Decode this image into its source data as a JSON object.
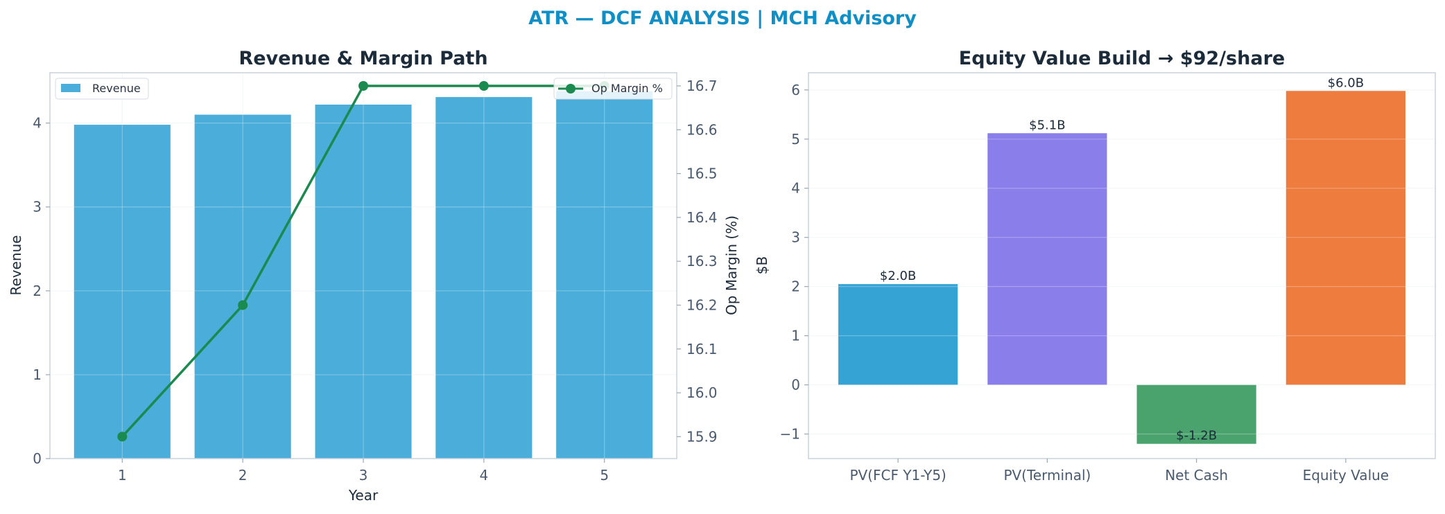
{
  "suptitle": "ATR — DCF ANALYSIS | MCH Advisory",
  "chart_data": [
    {
      "type": "bar",
      "title": "Revenue & Margin Path",
      "xlabel": "Year",
      "ylabel": "Revenue",
      "y2label": "Op Margin (%)",
      "categories": [
        "1",
        "2",
        "3",
        "4",
        "5"
      ],
      "ylim": [
        0,
        4.6
      ],
      "y2lim": [
        15.85,
        16.73
      ],
      "yticks": [
        "0",
        "1",
        "2",
        "3",
        "4"
      ],
      "y2ticks": [
        "15.9",
        "16.0",
        "16.1",
        "16.2",
        "16.3",
        "16.4",
        "16.5",
        "16.6",
        "16.7"
      ],
      "series": [
        {
          "name": "Revenue",
          "kind": "bar",
          "axis": "left",
          "values": [
            3.98,
            4.1,
            4.22,
            4.31,
            4.38
          ],
          "color": "#4badd9"
        },
        {
          "name": "Op Margin %",
          "kind": "line",
          "axis": "right",
          "values": [
            15.9,
            16.2,
            16.7,
            16.7,
            16.7
          ],
          "color": "#1a8a4e"
        }
      ],
      "legend": [
        "upper-left",
        "upper-right"
      ],
      "grid": true
    },
    {
      "type": "bar",
      "title": "Equity Value Build → $92/share",
      "xlabel": "",
      "ylabel": "$B",
      "categories": [
        "PV(FCF Y1-Y5)",
        "PV(Terminal)",
        "Net Cash",
        "Equity Value"
      ],
      "values": [
        2.05,
        5.12,
        -1.2,
        5.98
      ],
      "data_labels": [
        "$2.0B",
        "$5.1B",
        "$-1.2B",
        "$6.0B"
      ],
      "colors": [
        "#36a3d5",
        "#8a7eeb",
        "#4aa36d",
        "#ee7c3e"
      ],
      "ylim": [
        -1.5,
        6.35
      ],
      "yticks": [
        "−1",
        "0",
        "1",
        "2",
        "3",
        "4",
        "5",
        "6"
      ],
      "grid": true
    }
  ]
}
